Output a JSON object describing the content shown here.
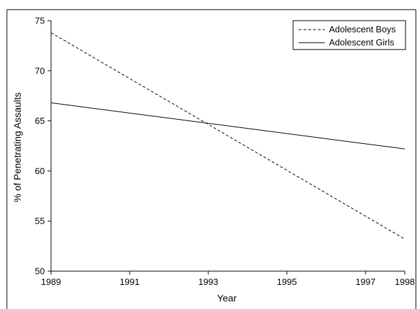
{
  "chart_data": {
    "type": "line",
    "xlabel": "Year",
    "ylabel": "% of Penetrating Assaults",
    "xlim": [
      1989,
      1998
    ],
    "ylim": [
      50,
      75
    ],
    "x_ticks": [
      "1989",
      "1991",
      "1993",
      "1995",
      "1997",
      "1998"
    ],
    "y_ticks": [
      "50",
      "55",
      "60",
      "65",
      "70",
      "75"
    ],
    "grid": false,
    "legend_position": "top-right",
    "series": [
      {
        "name": "Adolescent Boys",
        "line_style": "dashed",
        "color": "#000000",
        "x": [
          1989,
          1998
        ],
        "y": [
          73.8,
          53.2
        ]
      },
      {
        "name": "Adolescent Girls",
        "line_style": "solid",
        "color": "#000000",
        "x": [
          1989,
          1998
        ],
        "y": [
          66.8,
          62.2
        ]
      }
    ]
  }
}
